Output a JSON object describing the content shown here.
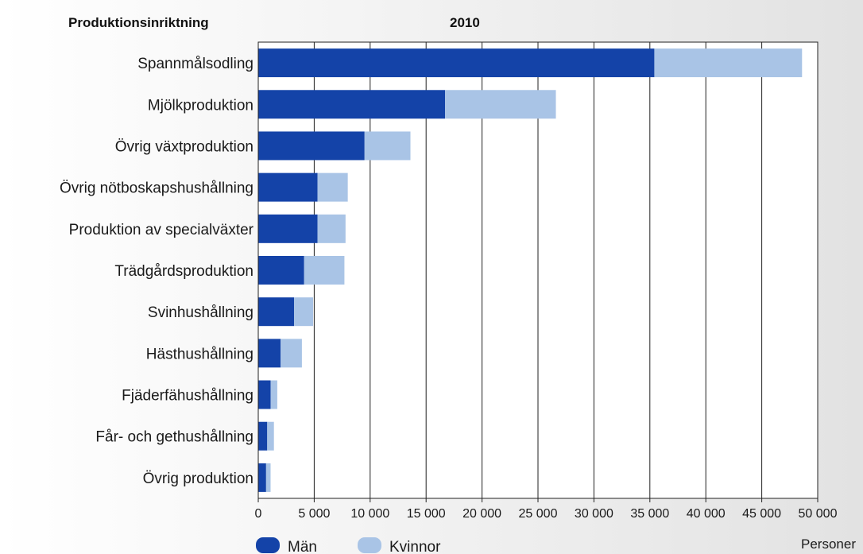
{
  "header": {
    "category_heading": "Produktionsinriktning",
    "year": "2010"
  },
  "unit_label": "Personer",
  "chart_data": {
    "type": "bar",
    "orientation": "horizontal",
    "stacked": true,
    "categories": [
      "Spannmålsodling",
      "Mjölkproduktion",
      "Övrig växtproduktion",
      "Övrig nötboskapshushållning",
      "Produktion av specialväxter",
      "Trädgårdsproduktion",
      "Svinhushållning",
      "Hästhushållning",
      "Fjäderfähushållning",
      "Får- och gethushållning",
      "Övrig produktion"
    ],
    "series": [
      {
        "name": "Män",
        "color": "#1443a8",
        "values": [
          35400,
          16700,
          9500,
          5300,
          5300,
          4100,
          3200,
          2000,
          1100,
          800,
          700
        ]
      },
      {
        "name": "Kvinnor",
        "color": "#a9c4e6",
        "values": [
          13200,
          9900,
          4100,
          2700,
          2500,
          3600,
          1700,
          1900,
          600,
          600,
          400
        ]
      }
    ],
    "xlim": [
      0,
      50000
    ],
    "xticks": [
      "0",
      "5 000",
      "10 000",
      "15 000",
      "20 000",
      "25 000",
      "30 000",
      "35 000",
      "40 000",
      "45 000",
      "50 000"
    ],
    "xlabel": "Personer",
    "grid": "vertical",
    "legend": "bottom-left"
  }
}
